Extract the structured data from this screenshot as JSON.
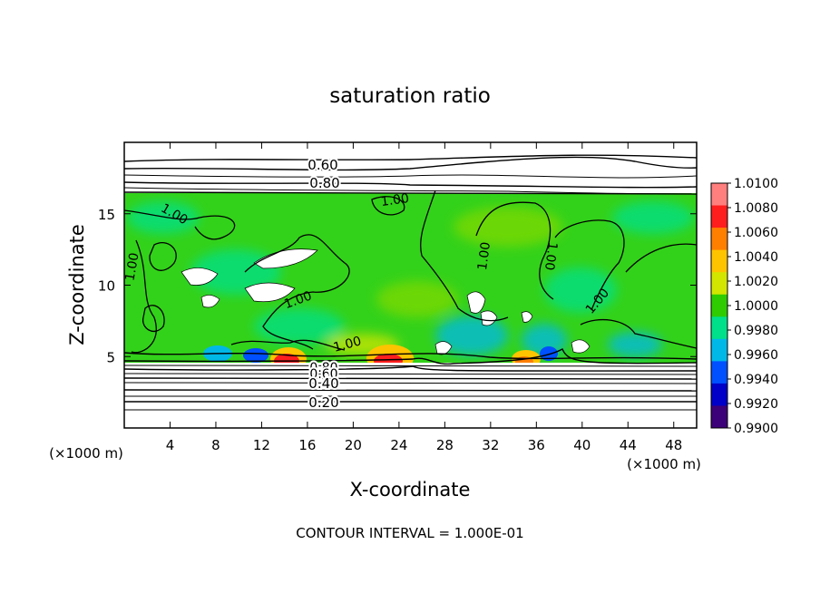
{
  "chart_data": {
    "type": "heatmap",
    "title": "saturation ratio",
    "xlabel": "X-coordinate",
    "ylabel": "Z-coordinate",
    "x_unit_label": "(×1000 m)",
    "y_unit_label": "(×1000 m)",
    "xlim": [
      0,
      50
    ],
    "ylim": [
      0,
      20
    ],
    "x_ticks": [
      4,
      8,
      12,
      16,
      20,
      24,
      28,
      32,
      36,
      40,
      44,
      48
    ],
    "y_ticks": [
      5,
      10,
      15
    ],
    "colorbar": {
      "levels": [
        1.01,
        1.008,
        1.006,
        1.004,
        1.002,
        1.0,
        0.998,
        0.996,
        0.994,
        0.992,
        0.99
      ],
      "labels": [
        "1.0100",
        "1.0080",
        "1.0060",
        "1.0040",
        "1.0020",
        "1.0000",
        "0.9980",
        "0.9960",
        "0.9940",
        "0.9920",
        "0.9900"
      ],
      "colors": [
        "#ff7f7f",
        "#ff1e1e",
        "#ff7f00",
        "#ffc400",
        "#d2e600",
        "#2ecc00",
        "#00e08a",
        "#00b8e8",
        "#0050ff",
        "#0000c8",
        "#3c0078"
      ]
    },
    "field": {
      "cloud_layer_z": [
        5.0,
        16.3
      ],
      "background_value": 1.0,
      "background_color": "#33d21a"
    },
    "contour_levels": [
      {
        "value": 0.2,
        "label": "0.20",
        "z": 1.9
      },
      {
        "value": 0.4,
        "label": "0.40",
        "z": 3.0
      },
      {
        "value": 0.6,
        "label": "0.60",
        "z": 3.7
      },
      {
        "value": 0.8,
        "label": "0.80",
        "z": 4.3
      },
      {
        "value": 0.6,
        "label": "0.60",
        "z": 18.4
      },
      {
        "value": 0.8,
        "label": "0.80",
        "z": 17.0
      }
    ],
    "contour_value_labels": [
      "1.00"
    ],
    "annotation": "CONTOUR INTERVAL = 1.000E-01"
  }
}
